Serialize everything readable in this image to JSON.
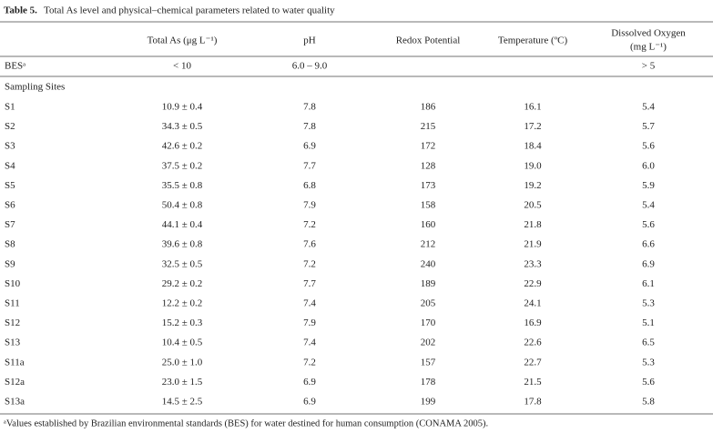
{
  "caption": {
    "label": "Table 5.",
    "text": "Total As level and physical–chemical parameters related to water quality"
  },
  "table": {
    "headers": [
      "Total As (μg L⁻¹)",
      "pH",
      "Redox Potential",
      "Temperature (ºC)",
      [
        "Dissolved Oxygen",
        "(mg L⁻¹)"
      ]
    ],
    "standard": {
      "label": "BESᵃ",
      "values": [
        "< 10",
        "6.0 – 9.0",
        "> 5"
      ]
    },
    "section": "Sampling Sites",
    "rows": [
      [
        "S1",
        "10.9 ± 0.4",
        "7.8",
        "186",
        "16.1",
        "5.4"
      ],
      [
        "S2",
        "34.3 ± 0.5",
        "7.8",
        "215",
        "17.2",
        "5.7"
      ],
      [
        "S3",
        "42.6 ± 0.2",
        "6.9",
        "172",
        "18.4",
        "5.6"
      ],
      [
        "S4",
        "37.5 ± 0.2",
        "7.7",
        "128",
        "19.0",
        "6.0"
      ],
      [
        "S5",
        "35.5 ± 0.8",
        "6.8",
        "173",
        "19.2",
        "5.9"
      ],
      [
        "S6",
        "50.4 ± 0.8",
        "7.9",
        "158",
        "20.5",
        "5.4"
      ],
      [
        "S7",
        "44.1 ± 0.4",
        "7.2",
        "160",
        "21.8",
        "5.6"
      ],
      [
        "S8",
        "39.6 ± 0.8",
        "7.6",
        "212",
        "21.9",
        "6.6"
      ],
      [
        "S9",
        "32.5 ± 0.5",
        "7.2",
        "240",
        "23.3",
        "6.9"
      ],
      [
        "S10",
        "29.2 ± 0.2",
        "7.7",
        "189",
        "22.9",
        "6.1"
      ],
      [
        "S11",
        "12.2 ± 0.2",
        "7.4",
        "205",
        "24.1",
        "5.3"
      ],
      [
        "S12",
        "15.2 ± 0.3",
        "7.9",
        "170",
        "16.9",
        "5.1"
      ],
      [
        "S13",
        "10.4 ± 0.5",
        "7.4",
        "202",
        "22.6",
        "6.5"
      ],
      [
        "S11a",
        "25.0 ± 1.0",
        "7.2",
        "157",
        "22.7",
        "5.3"
      ],
      [
        "S12a",
        "23.0 ± 1.5",
        "6.9",
        "178",
        "21.5",
        "5.6"
      ],
      [
        "S13a",
        "14.5 ± 2.5",
        "6.9",
        "199",
        "17.8",
        "5.8"
      ]
    ]
  },
  "footnote": "ᵃValues established by Brazilian environmental standards (BES) for water destined for human consumption (CONAMA 2005)."
}
